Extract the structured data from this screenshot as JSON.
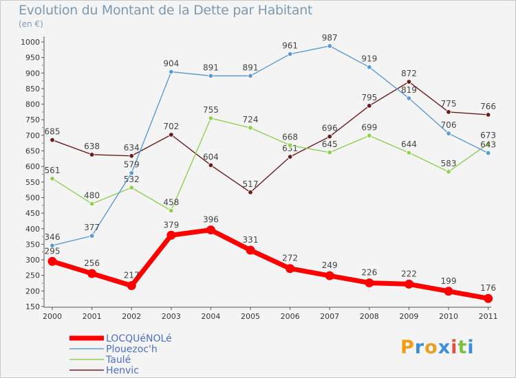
{
  "header": {
    "title": "Evolution du Montant de la Dette par Habitant",
    "subtitle": "(en €)"
  },
  "logo": {
    "text": "Proxiti",
    "colors": [
      "#f39c12",
      "#3a8fd8",
      "#e8a020",
      "#3a8fd8",
      "#e74c3c",
      "#7cc242",
      "#3a8fd8"
    ]
  },
  "chart_data": {
    "type": "line",
    "x": [
      "2000",
      "2001",
      "2002",
      "2003",
      "2004",
      "2005",
      "2006",
      "2007",
      "2008",
      "2009",
      "2010",
      "2011"
    ],
    "y_ticks": [
      "150",
      "200",
      "250",
      "300",
      "350",
      "400",
      "450",
      "500",
      "550",
      "600",
      "650",
      "700",
      "750",
      "800",
      "850",
      "900",
      "950",
      "1000"
    ],
    "ylim": [
      150,
      1000
    ],
    "grid": false,
    "legend_position": "bottom-left",
    "series": [
      {
        "name": "Henvic",
        "color": "#6b1a1a",
        "values": [
          685,
          638,
          634,
          702,
          604,
          517,
          631,
          696,
          795,
          872,
          775,
          766
        ]
      },
      {
        "name": "Taulé",
        "color": "#8fd14f",
        "values": [
          561,
          480,
          532,
          458,
          755,
          724,
          668,
          645,
          699,
          644,
          583,
          673
        ]
      },
      {
        "name": "Plouezoc'h",
        "color": "#5a9bd5",
        "values": [
          346,
          377,
          579,
          904,
          891,
          891,
          961,
          987,
          919,
          819,
          706,
          643
        ]
      },
      {
        "name": "LOCQUéNOLé",
        "color": "#ff0000",
        "values": [
          295,
          256,
          217,
          379,
          396,
          331,
          272,
          249,
          226,
          222,
          199,
          176
        ]
      }
    ],
    "legend": [
      {
        "name": "LOCQUéNOLé",
        "color": "#ff0000",
        "thick": true
      },
      {
        "name": "Plouezoc'h",
        "color": "#5a9bd5",
        "thick": false
      },
      {
        "name": "Taulé",
        "color": "#8fd14f",
        "thick": false
      },
      {
        "name": "Henvic",
        "color": "#6b1a1a",
        "thick": false
      }
    ]
  }
}
